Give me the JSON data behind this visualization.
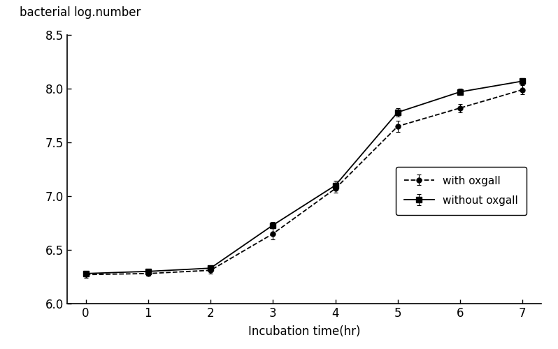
{
  "x": [
    0,
    1,
    2,
    3,
    4,
    5,
    6,
    7
  ],
  "with_oxgall": [
    6.27,
    6.28,
    6.31,
    6.65,
    7.07,
    7.65,
    7.82,
    7.99
  ],
  "without_oxgall": [
    6.28,
    6.3,
    6.33,
    6.73,
    7.1,
    7.78,
    7.97,
    8.07
  ],
  "with_oxgall_err": [
    0.03,
    0.02,
    0.03,
    0.05,
    0.04,
    0.05,
    0.04,
    0.04
  ],
  "without_oxgall_err": [
    0.02,
    0.02,
    0.02,
    0.03,
    0.04,
    0.04,
    0.03,
    0.03
  ],
  "ylabel": "bacterial log.number",
  "xlabel": "Incubation time(hr)",
  "ylim": [
    6.0,
    8.5
  ],
  "xlim": [
    -0.3,
    7.3
  ],
  "yticks": [
    6.0,
    6.5,
    7.0,
    7.5,
    8.0,
    8.5
  ],
  "xticks": [
    0,
    1,
    2,
    3,
    4,
    5,
    6,
    7
  ],
  "legend_with": "with oxgall",
  "legend_without": "without oxgall",
  "line_color": "#000000",
  "bg_color": "#ffffff"
}
